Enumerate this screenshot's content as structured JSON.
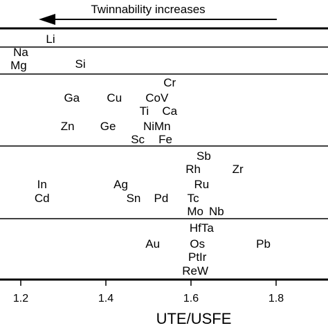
{
  "chart_data": {
    "type": "scatter",
    "title": "",
    "xlabel": "UTE/USFE",
    "ylabel": "",
    "xlim": [
      1.15,
      1.95
    ],
    "xticks": [
      1.2,
      1.4,
      1.6,
      1.8
    ],
    "tick_labels": [
      "1.2",
      "1.4",
      "1.6",
      "1.8"
    ],
    "grid": false,
    "annotation": "Twinnability increases",
    "rows": [
      {
        "elements": [
          {
            "label": "Li",
            "x": 1.27
          }
        ]
      },
      {
        "elements": [
          {
            "label": "Na",
            "x": 1.2
          },
          {
            "label": "Mg",
            "x": 1.195
          },
          {
            "label": "Si",
            "x": 1.34
          }
        ]
      },
      {
        "elements": [
          {
            "label": "Cr",
            "x": 1.55
          },
          {
            "label": "Ga",
            "x": 1.32
          },
          {
            "label": "Cu",
            "x": 1.42
          },
          {
            "label": "CoV",
            "x": 1.52
          },
          {
            "label": "Ti",
            "x": 1.49
          },
          {
            "label": "Ca",
            "x": 1.55
          },
          {
            "label": "Zn",
            "x": 1.31
          },
          {
            "label": "Ge",
            "x": 1.405
          },
          {
            "label": "NiMn",
            "x": 1.52
          },
          {
            "label": "Sc",
            "x": 1.475
          },
          {
            "label": "Fe",
            "x": 1.54
          }
        ]
      },
      {
        "elements": [
          {
            "label": "Sb",
            "x": 1.63
          },
          {
            "label": "Rh",
            "x": 1.605
          },
          {
            "label": "Zr",
            "x": 1.71
          },
          {
            "label": "In",
            "x": 1.25
          },
          {
            "label": "Ag",
            "x": 1.435
          },
          {
            "label": "Ru",
            "x": 1.625
          },
          {
            "label": "Cd",
            "x": 1.25
          },
          {
            "label": "Sn",
            "x": 1.465
          },
          {
            "label": "Pd",
            "x": 1.53
          },
          {
            "label": "Tc",
            "x": 1.605
          },
          {
            "label": "Mo",
            "x": 1.61
          },
          {
            "label": "Nb",
            "x": 1.66
          }
        ]
      },
      {
        "elements": [
          {
            "label": "HfTa",
            "x": 1.625
          },
          {
            "label": "Au",
            "x": 1.51
          },
          {
            "label": "Os",
            "x": 1.615
          },
          {
            "label": "Pb",
            "x": 1.77
          },
          {
            "label": "PtIr",
            "x": 1.615
          },
          {
            "label": "ReW",
            "x": 1.61
          }
        ]
      }
    ]
  }
}
